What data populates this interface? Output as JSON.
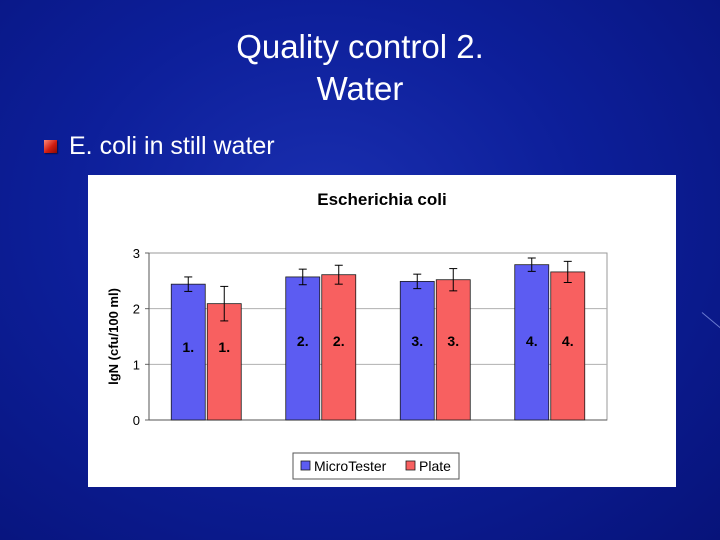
{
  "slide": {
    "title_line1": "Quality control 2.",
    "title_line2": "Water",
    "bullet": "E. coli in still water"
  },
  "chart_data": {
    "type": "bar",
    "title": "Escherichia coli",
    "xlabel": "",
    "ylabel": "lgN (cfu/100 ml)",
    "ylim": [
      0,
      3
    ],
    "yticks": [
      "0",
      "1",
      "2",
      "3"
    ],
    "grid": true,
    "legend_position": "bottom",
    "groups": 4,
    "series": [
      {
        "name": "MicroTester",
        "color": "#5c5cf2",
        "values": [
          2.44,
          2.57,
          2.49,
          2.79
        ],
        "errors": [
          0.13,
          0.14,
          0.13,
          0.12
        ],
        "labels": [
          "1.",
          "2.",
          "3.",
          "4."
        ]
      },
      {
        "name": "Plate",
        "color": "#f86060",
        "values": [
          2.09,
          2.61,
          2.52,
          2.66
        ],
        "errors": [
          0.31,
          0.17,
          0.2,
          0.19
        ],
        "labels": [
          "1.",
          "2.",
          "3.",
          "4."
        ]
      }
    ]
  }
}
